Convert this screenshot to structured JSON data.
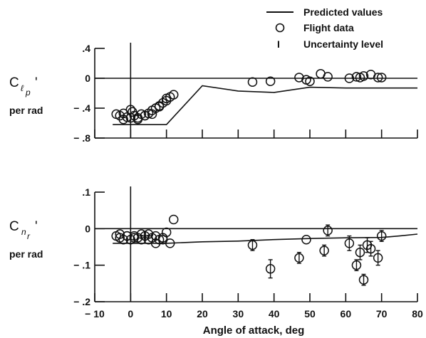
{
  "legend": {
    "predicted": "Predicted values",
    "flight": "Flight data",
    "uncertainty_symbol": "I",
    "uncertainty": "Uncertainty level"
  },
  "xaxis": {
    "label": "Angle of attack, deg",
    "range": [
      -10,
      80
    ],
    "ticks": [
      -10,
      0,
      10,
      20,
      30,
      40,
      50,
      60,
      70,
      80
    ],
    "tick_labels": [
      "− 10",
      "0",
      "10",
      "20",
      "30",
      "40",
      "50",
      "60",
      "70",
      "80"
    ]
  },
  "chart_data": [
    {
      "type": "scatter",
      "ylabel": {
        "main": "C",
        "sub_l": "ℓ",
        "sub_p": "p",
        "prime": "'",
        "unit": "per rad"
      },
      "ylim": [
        -0.8,
        0.4
      ],
      "yticks": [
        0.4,
        0,
        -0.4,
        -0.8
      ],
      "ytick_labels": [
        ".4",
        "0",
        "− .4",
        "− .8"
      ],
      "zero_line": true,
      "series": [
        {
          "name": "Predicted values",
          "style": "line",
          "x": [
            -5,
            10,
            20,
            30,
            40,
            50,
            60,
            70,
            80
          ],
          "y": [
            -0.62,
            -0.62,
            -0.1,
            -0.17,
            -0.19,
            -0.12,
            -0.13,
            -0.13,
            -0.13
          ]
        },
        {
          "name": "Flight data",
          "style": "circle",
          "x": [
            -4,
            -3,
            -2,
            -1,
            0,
            0.5,
            1,
            2,
            3,
            4,
            5,
            6,
            7,
            8,
            9,
            10,
            11,
            12,
            -2,
            0,
            2,
            4,
            6,
            8,
            10,
            34,
            39,
            47,
            49,
            50,
            53,
            55,
            61,
            63,
            64,
            65,
            67,
            69,
            70
          ],
          "y": [
            -0.48,
            -0.5,
            -0.47,
            -0.52,
            -0.53,
            -0.45,
            -0.5,
            -0.53,
            -0.48,
            -0.5,
            -0.47,
            -0.43,
            -0.4,
            -0.37,
            -0.33,
            -0.27,
            -0.25,
            -0.22,
            -0.55,
            -0.42,
            -0.55,
            -0.5,
            -0.48,
            -0.38,
            -0.3,
            -0.05,
            -0.04,
            0.01,
            -0.02,
            -0.04,
            0.06,
            0.02,
            0.0,
            0.02,
            0.01,
            0.03,
            0.05,
            0.01,
            0.01
          ]
        }
      ]
    },
    {
      "type": "scatter",
      "ylabel": {
        "main": "C",
        "sub_n": "n",
        "sub_r": "r",
        "prime": "'",
        "unit": "per rad"
      },
      "ylim": [
        -0.2,
        0.1
      ],
      "yticks": [
        0.1,
        0,
        -0.1,
        -0.2
      ],
      "ytick_labels": [
        ".1",
        "0",
        "− .1",
        "− .2"
      ],
      "zero_line": true,
      "series": [
        {
          "name": "Predicted values",
          "style": "line",
          "x": [
            -5,
            10,
            20,
            30,
            40,
            50,
            60,
            70,
            75,
            80
          ],
          "y": [
            -0.04,
            -0.04,
            -0.036,
            -0.034,
            -0.03,
            -0.027,
            -0.025,
            -0.024,
            -0.02,
            -0.015
          ]
        },
        {
          "name": "Flight data",
          "style": "circle",
          "x": [
            -4,
            -3,
            -2,
            -1,
            0,
            1,
            2,
            3,
            4,
            5,
            6,
            7,
            8,
            9,
            10,
            -3,
            -1,
            1,
            3,
            5,
            7,
            9,
            11,
            12,
            34,
            39,
            47,
            49,
            54,
            55,
            61,
            63,
            64,
            65,
            66,
            67,
            69,
            70
          ],
          "y": [
            -0.02,
            -0.025,
            -0.03,
            -0.02,
            -0.03,
            -0.02,
            -0.025,
            -0.015,
            -0.02,
            -0.03,
            -0.025,
            -0.02,
            -0.03,
            -0.025,
            -0.01,
            -0.015,
            -0.02,
            -0.025,
            -0.03,
            -0.015,
            -0.04,
            -0.03,
            -0.04,
            0.025,
            -0.045,
            -0.11,
            -0.08,
            -0.03,
            -0.06,
            -0.005,
            -0.04,
            -0.1,
            -0.065,
            -0.14,
            -0.045,
            -0.055,
            -0.08,
            -0.02
          ],
          "uncertainty": [
            0,
            0,
            0,
            0,
            0,
            0,
            0,
            0,
            0,
            0,
            0,
            0,
            0,
            0,
            0,
            0,
            0,
            0,
            0,
            0,
            0,
            0,
            0,
            0,
            0.015,
            0.025,
            0.015,
            0,
            0.015,
            0.015,
            0.02,
            0.015,
            0.02,
            0.015,
            0.02,
            0.02,
            0.02,
            0.015
          ]
        }
      ]
    }
  ]
}
